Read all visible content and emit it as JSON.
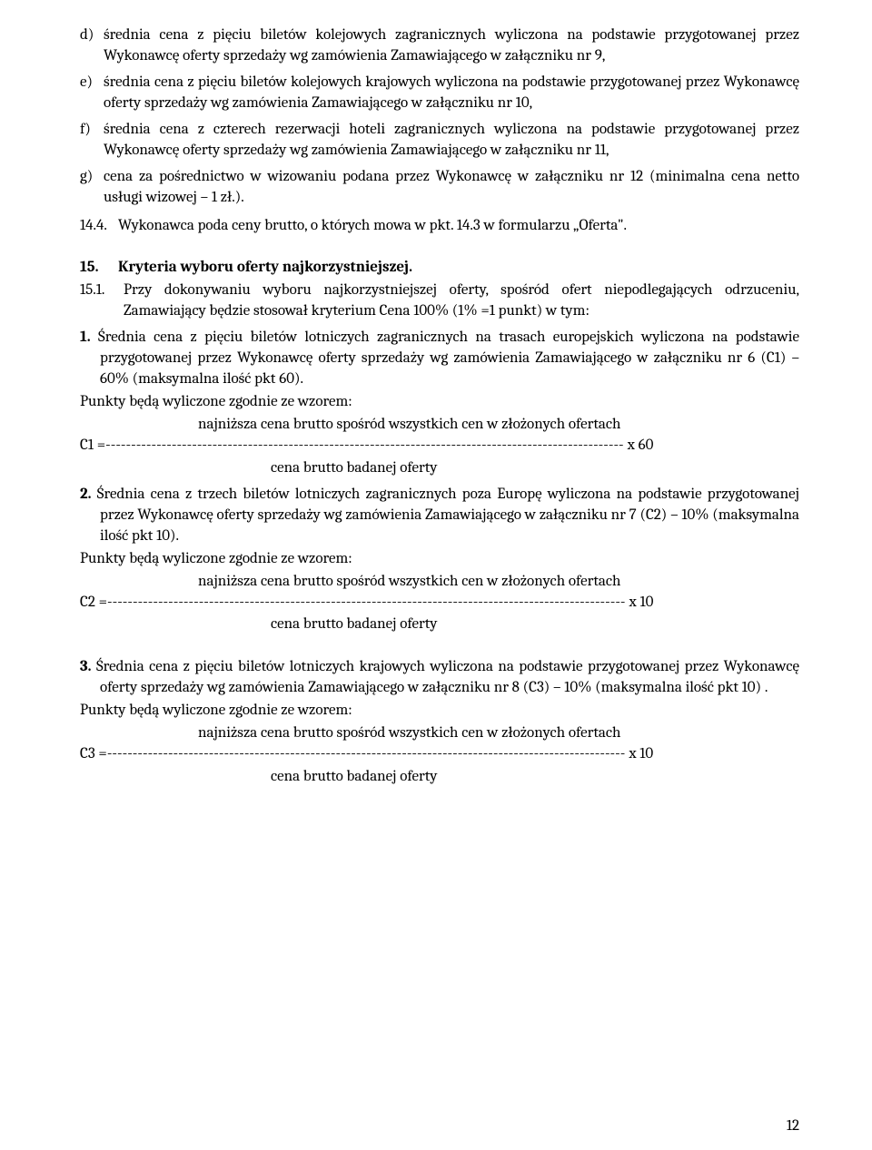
{
  "list_d": {
    "label": "d)",
    "text": "średnia cena z pięciu biletów kolejowych zagranicznych wyliczona na podstawie przygotowanej przez Wykonawcę oferty sprzedaży wg zamówienia Zamawiającego w załączniku nr 9,"
  },
  "list_e": {
    "label": "e)",
    "text": "średnia cena z pięciu biletów kolejowych krajowych wyliczona na podstawie przygotowanej przez Wykonawcę oferty sprzedaży wg zamówienia Zamawiającego w załączniku nr 10,"
  },
  "list_f": {
    "label": "f)",
    "text": "średnia cena z czterech rezerwacji hoteli zagranicznych wyliczona na podstawie przygotowanej przez Wykonawcę oferty sprzedaży wg zamówienia Zamawiającego w załączniku nr 11,"
  },
  "list_g": {
    "label": "g)",
    "text": "cena za pośrednictwo w wizowaniu podana przez Wykonawcę w załączniku nr 12 (minimalna cena netto usługi wizowej – 1 zł.)."
  },
  "line_14_4": {
    "label": "14.4.",
    "text": "Wykonawca poda ceny brutto, o których mowa w pkt. 14.3 w formularzu „Oferta\"."
  },
  "section_15": {
    "label": "15.",
    "title": "Kryteria wyboru oferty najkorzystniejszej."
  },
  "line_15_1": {
    "label": "15.1.",
    "text": "Przy dokonywaniu wyboru najkorzystniejszej oferty, spośród ofert niepodlegających odrzuceniu, Zamawiający będzie stosował kryterium Cena 100% (1% =1 punkt) w tym:"
  },
  "crit1": {
    "lead": "1.",
    "text": "Średnia cena z pięciu biletów lotniczych zagranicznych na trasach europejskich wyliczona na podstawie przygotowanej przez Wykonawcę oferty sprzedaży wg zamówienia Zamawiającego w załączniku nr 6 (C1) –   60% (maksymalna ilość pkt 60)."
  },
  "crit2": {
    "lead": "2.",
    "text": "Średnia cena z trzech biletów lotniczych zagranicznych poza Europę wyliczona na podstawie przygotowanej przez Wykonawcę oferty sprzedaży wg zamówienia Zamawiającego w załączniku nr 7 (C2) –   10% (maksymalna ilość pkt 10)."
  },
  "crit3": {
    "lead": "3.",
    "text": "Średnia cena z pięciu biletów lotniczych krajowych wyliczona na podstawie przygotowanej przez Wykonawcę oferty sprzedaży wg zamówienia Zamawiającego w załączniku nr 8 (C3) – 10% (maksymalna ilość pkt 10) ."
  },
  "pts_line": "Punkty będą wyliczone zgodnie ze wzorem:",
  "formula": {
    "numerator": "najniższa cena brutto spośród wszystkich cen w złożonych ofertach",
    "denominator": "cena brutto badanej oferty",
    "c1_prefix": "C1 =",
    "c1_mult": "x 60",
    "c2_prefix": "C2 =",
    "c2_mult": "x 10",
    "c3_prefix": "C3 =",
    "c3_mult": "x 10",
    "dashes": "------------------------------------------------------------------------------------------------------ "
  },
  "page_no": "12"
}
